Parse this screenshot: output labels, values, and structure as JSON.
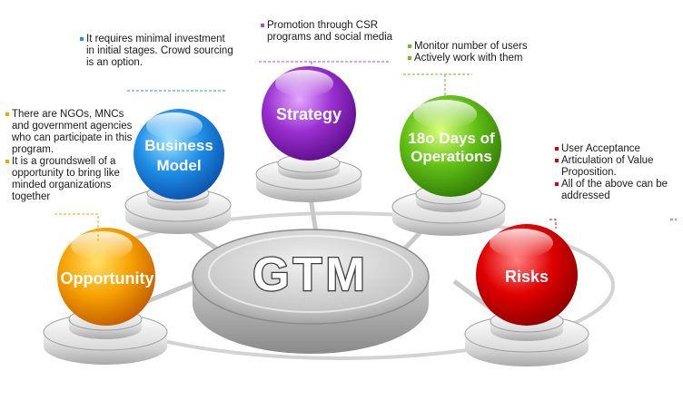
{
  "center": {
    "label": "GTM"
  },
  "nodes": [
    {
      "id": "opportunity",
      "label_lines": [
        "Opportunity"
      ],
      "color": "#f39c12"
    },
    {
      "id": "business-model",
      "label_lines": [
        "Business",
        "Model"
      ],
      "color": "#1e88e5"
    },
    {
      "id": "strategy",
      "label_lines": [
        "Strategy"
      ],
      "color": "#8e24aa"
    },
    {
      "id": "operations",
      "label_lines": [
        "18o Days of",
        "Operations"
      ],
      "color": "#66bb1a"
    },
    {
      "id": "risks",
      "label_lines": [
        "Risks"
      ],
      "color": "#d50000"
    }
  ],
  "notes": {
    "opportunity": [
      "There are NGOs, MNCs and government agencies who can participate in this program.",
      "It is a groundswell of a opportunity to bring like minded organizations together"
    ],
    "business_model": [
      "It requires minimal investment in initial stages. Crowd sourcing is an option."
    ],
    "strategy": [
      "Promotion through CSR programs and social media"
    ],
    "operations": [
      "Monitor number of users",
      "Actively work with them"
    ],
    "risks": [
      "User Acceptance",
      "Articulation of Value Proposition.",
      "All of the above can be addressed"
    ]
  }
}
